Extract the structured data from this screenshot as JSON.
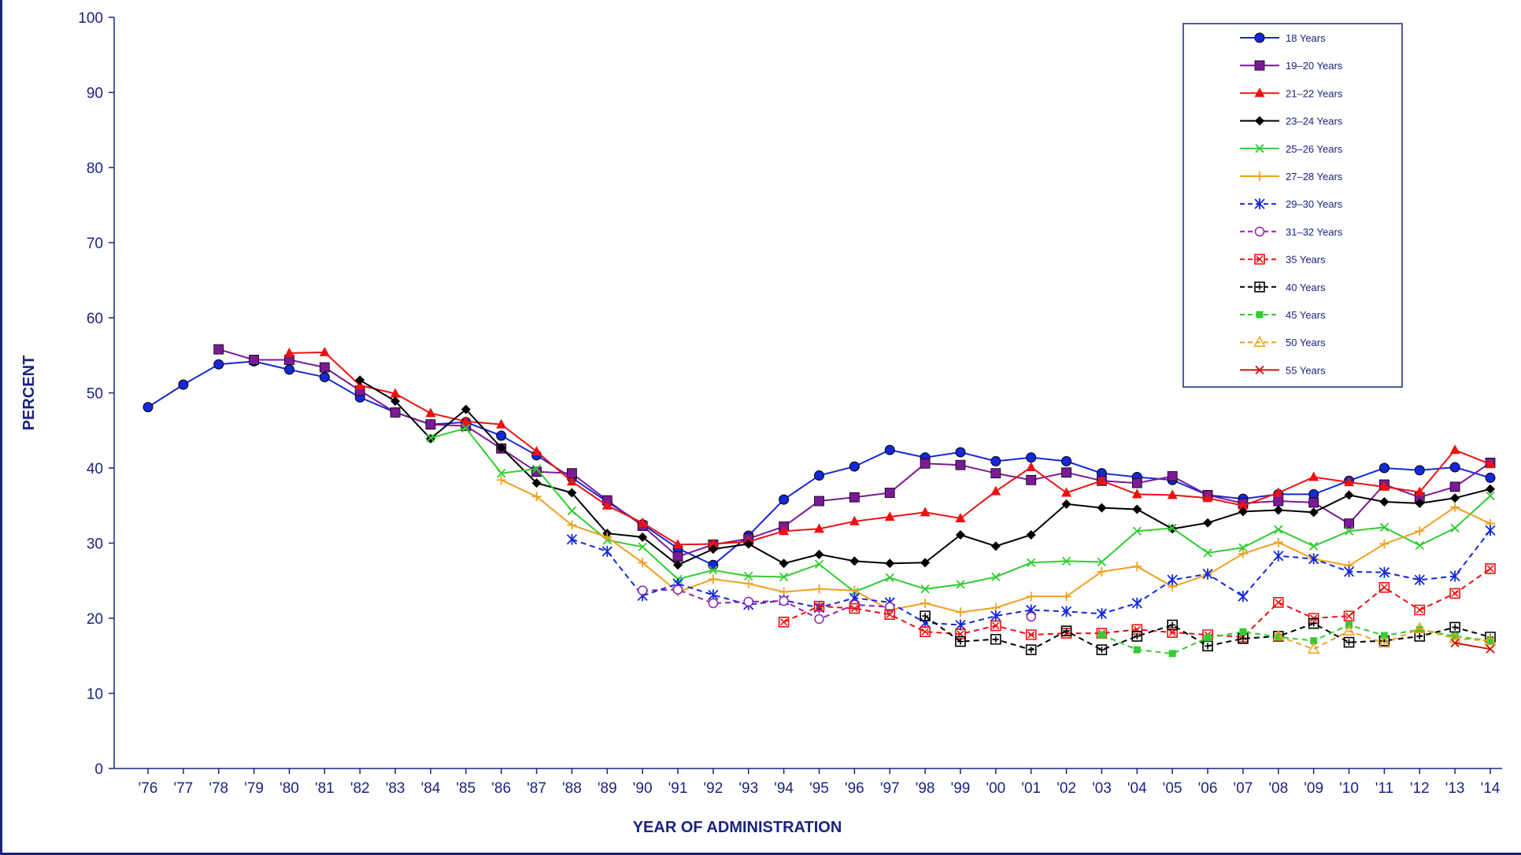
{
  "chart_data": {
    "type": "line",
    "title": "",
    "xlabel": "YEAR OF ADMINISTRATION",
    "ylabel": "PERCENT",
    "ylim": [
      0,
      100
    ],
    "yticks": [
      0,
      10,
      20,
      30,
      40,
      50,
      60,
      70,
      80,
      90,
      100
    ],
    "grid": false,
    "legend_position": "top-right",
    "x": [
      "'76",
      "'77",
      "'78",
      "'79",
      "'80",
      "'81",
      "'82",
      "'83",
      "'84",
      "'85",
      "'86",
      "'87",
      "'88",
      "'89",
      "'90",
      "'91",
      "'92",
      "'93",
      "'94",
      "'95",
      "'96",
      "'97",
      "'98",
      "'99",
      "'00",
      "'01",
      "'02",
      "'03",
      "'04",
      "'05",
      "'06",
      "'07",
      "'08",
      "'09",
      "'10",
      "'11",
      "'12",
      "'13",
      "'14"
    ],
    "series": [
      {
        "name": "18 Years",
        "color": "#1428d8",
        "marker": "circle",
        "dash": "solid",
        "values": [
          48.1,
          51.1,
          53.8,
          54.2,
          53.1,
          52.1,
          49.4,
          47.4,
          45.8,
          46.1,
          44.3,
          41.7,
          38.7,
          35.5,
          32.5,
          29.3,
          27.1,
          31.0,
          35.8,
          39.0,
          40.2,
          42.4,
          41.4,
          42.1,
          40.9,
          41.4,
          40.9,
          39.3,
          38.8,
          38.4,
          36.4,
          35.9,
          36.5,
          36.5,
          38.3,
          40.0,
          39.7,
          40.1,
          38.7
        ]
      },
      {
        "name": "19–20 Years",
        "color": "#7b1a96",
        "marker": "square",
        "dash": "solid",
        "values": [
          null,
          null,
          55.8,
          54.4,
          54.4,
          53.4,
          50.3,
          47.4,
          45.8,
          45.6,
          42.6,
          39.5,
          39.3,
          35.7,
          32.3,
          28.2,
          29.8,
          30.6,
          32.2,
          35.6,
          36.1,
          36.7,
          40.6,
          40.4,
          39.3,
          38.4,
          39.4,
          38.3,
          38.0,
          38.9,
          36.4,
          35.3,
          35.6,
          35.4,
          32.6,
          37.8,
          36.1,
          37.5,
          40.7
        ]
      },
      {
        "name": "21–22 Years",
        "color": "#ee1111",
        "marker": "triangle",
        "dash": "solid",
        "values": [
          null,
          null,
          null,
          null,
          55.3,
          55.4,
          51.0,
          49.9,
          47.3,
          46.2,
          45.8,
          42.2,
          38.2,
          35.0,
          32.7,
          29.8,
          29.9,
          30.2,
          31.6,
          31.9,
          32.9,
          33.5,
          34.1,
          33.3,
          36.9,
          40.1,
          36.7,
          38.3,
          36.5,
          36.4,
          36.0,
          35.0,
          36.7,
          38.8,
          38.1,
          37.5,
          36.8,
          42.4,
          40.5
        ]
      },
      {
        "name": "23–24 Years",
        "color": "#000000",
        "marker": "diamond",
        "dash": "solid",
        "values": [
          null,
          null,
          null,
          null,
          null,
          null,
          51.7,
          48.9,
          43.9,
          47.8,
          42.7,
          38.0,
          36.7,
          31.3,
          30.8,
          27.1,
          29.2,
          29.9,
          27.3,
          28.5,
          27.6,
          27.3,
          27.4,
          31.1,
          29.6,
          31.1,
          35.2,
          34.7,
          34.5,
          31.9,
          32.7,
          34.2,
          34.4,
          34.1,
          36.4,
          35.5,
          35.3,
          36.0,
          37.2
        ]
      },
      {
        "name": "25–26 Years",
        "color": "#33cc33",
        "marker": "x",
        "dash": "solid",
        "values": [
          null,
          null,
          null,
          null,
          null,
          null,
          null,
          null,
          44.0,
          45.3,
          39.3,
          39.9,
          34.3,
          30.4,
          29.5,
          25.2,
          26.4,
          25.6,
          25.5,
          27.2,
          23.5,
          25.4,
          23.9,
          24.5,
          25.5,
          27.4,
          27.6,
          27.5,
          31.6,
          32.0,
          28.7,
          29.4,
          31.8,
          29.6,
          31.6,
          32.1,
          29.7,
          32.0,
          36.3
        ]
      },
      {
        "name": "27–28 Years",
        "color": "#f0a020",
        "marker": "plus",
        "dash": "solid",
        "values": [
          null,
          null,
          null,
          null,
          null,
          null,
          null,
          null,
          null,
          null,
          38.4,
          36.2,
          32.4,
          30.8,
          27.4,
          23.5,
          25.2,
          24.6,
          23.5,
          23.9,
          23.7,
          21.1,
          22.0,
          20.8,
          21.4,
          22.9,
          22.9,
          26.2,
          26.9,
          24.2,
          25.8,
          28.6,
          30.1,
          27.9,
          27.0,
          29.9,
          31.6,
          34.8,
          32.6
        ]
      },
      {
        "name": "29–30 Years",
        "color": "#1428d8",
        "marker": "asterisk",
        "dash": "dashed",
        "values": [
          null,
          null,
          null,
          null,
          null,
          null,
          null,
          null,
          null,
          null,
          null,
          null,
          30.5,
          28.9,
          23.0,
          24.6,
          23.1,
          21.8,
          22.4,
          21.4,
          22.7,
          22.1,
          19.4,
          19.1,
          20.3,
          21.1,
          20.9,
          20.6,
          22.0,
          25.1,
          25.9,
          22.9,
          28.3,
          27.9,
          26.2,
          26.1,
          25.1,
          25.6,
          31.7
        ]
      },
      {
        "name": "31–32 Years",
        "color": "#8e24aa",
        "marker": "circle-open",
        "dash": "dashed",
        "values": [
          null,
          null,
          null,
          null,
          null,
          null,
          null,
          null,
          null,
          null,
          null,
          null,
          null,
          null,
          23.7,
          23.8,
          22.0,
          22.2,
          22.3,
          19.9,
          21.8,
          21.5,
          null,
          null,
          null,
          20.2,
          null,
          null,
          null,
          null,
          null,
          null,
          null,
          null,
          null,
          null,
          null,
          null,
          null
        ]
      },
      {
        "name": "35 Years",
        "color": "#ee1111",
        "marker": "xsquare",
        "dash": "dashed",
        "values": [
          null,
          null,
          null,
          null,
          null,
          null,
          null,
          null,
          null,
          null,
          null,
          null,
          null,
          null,
          null,
          null,
          null,
          null,
          19.5,
          21.6,
          21.3,
          20.5,
          18.2,
          17.9,
          19.0,
          17.8,
          18.0,
          18.0,
          18.5,
          18.1,
          17.8,
          17.5,
          22.1,
          20.0,
          20.3,
          24.1,
          21.1,
          23.3,
          26.6
        ]
      },
      {
        "name": "40 Years",
        "color": "#000000",
        "marker": "plussquare",
        "dash": "dashed",
        "values": [
          null,
          null,
          null,
          null,
          null,
          null,
          null,
          null,
          null,
          null,
          null,
          null,
          null,
          null,
          null,
          null,
          null,
          null,
          null,
          null,
          null,
          null,
          20.3,
          16.9,
          17.2,
          15.8,
          18.3,
          15.8,
          17.6,
          19.1,
          16.3,
          17.3,
          17.6,
          19.3,
          16.8,
          17.0,
          17.6,
          18.8,
          17.5
        ]
      },
      {
        "name": "45 Years",
        "color": "#33cc33",
        "marker": "square-small",
        "dash": "dashed",
        "values": [
          null,
          null,
          null,
          null,
          null,
          null,
          null,
          null,
          null,
          null,
          null,
          null,
          null,
          null,
          null,
          null,
          null,
          null,
          null,
          null,
          null,
          null,
          null,
          null,
          null,
          null,
          null,
          17.8,
          15.8,
          15.3,
          17.4,
          18.2,
          17.5,
          17.0,
          19.1,
          17.7,
          18.5,
          17.6,
          17.0
        ]
      },
      {
        "name": "50 Years",
        "color": "#f0a020",
        "marker": "triangle-open",
        "dash": "dashed",
        "values": [
          null,
          null,
          null,
          null,
          null,
          null,
          null,
          null,
          null,
          null,
          null,
          null,
          null,
          null,
          null,
          null,
          null,
          null,
          null,
          null,
          null,
          null,
          null,
          null,
          null,
          null,
          null,
          null,
          null,
          null,
          null,
          null,
          17.6,
          15.9,
          18.3,
          16.7,
          18.6,
          17.3,
          17.0
        ]
      },
      {
        "name": "55 Years",
        "color": "#cc1111",
        "marker": "x",
        "dash": "solid",
        "values": [
          null,
          null,
          null,
          null,
          null,
          null,
          null,
          null,
          null,
          null,
          null,
          null,
          null,
          null,
          null,
          null,
          null,
          null,
          null,
          null,
          null,
          null,
          null,
          null,
          null,
          null,
          null,
          null,
          null,
          null,
          null,
          null,
          null,
          null,
          null,
          null,
          null,
          16.7,
          15.9
        ]
      }
    ]
  }
}
